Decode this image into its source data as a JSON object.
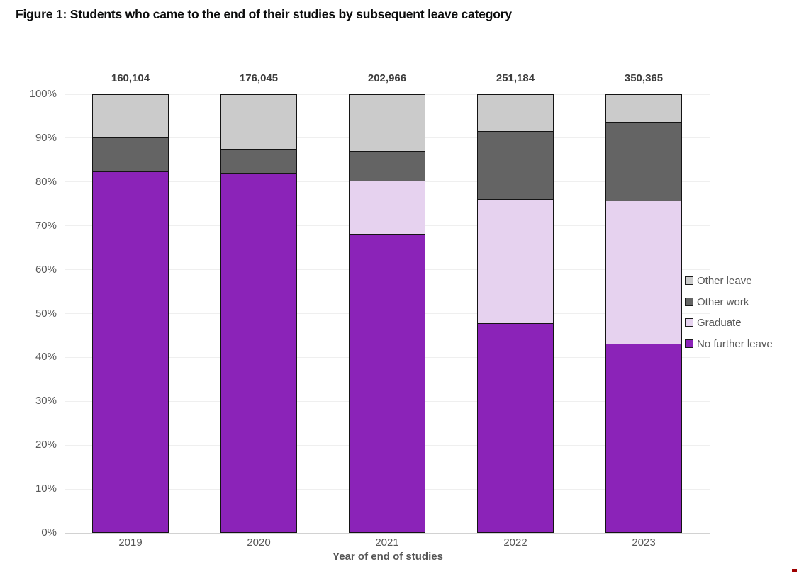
{
  "title": "Figure 1: Students who came to the end of their studies by subsequent leave category",
  "chart_data": {
    "type": "bar",
    "stacked": true,
    "title": "Figure 1: Students who came to the end of their studies by subsequent leave category",
    "categories": [
      "2019",
      "2020",
      "2021",
      "2022",
      "2023"
    ],
    "totals": [
      "160,104",
      "176,045",
      "202,966",
      "251,184",
      "350,365"
    ],
    "series": [
      {
        "name": "No further leave",
        "key": "no-further-leave",
        "color": "#8b23b8",
        "values": [
          82.4,
          82.2,
          68.2,
          47.9,
          43.2
        ]
      },
      {
        "name": "Graduate",
        "key": "graduate",
        "color": "#e6d2ef",
        "values": [
          0,
          0,
          12.1,
          28.3,
          32.6
        ]
      },
      {
        "name": "Other work",
        "key": "other-work",
        "color": "#646464",
        "values": [
          7.9,
          5.4,
          6.9,
          15.5,
          17.9
        ]
      },
      {
        "name": "Other leave",
        "key": "other-leave",
        "color": "#cbcbcb",
        "values": [
          9.7,
          12.4,
          12.8,
          8.3,
          6.3
        ]
      }
    ],
    "xlabel": "Year of end of studies",
    "ylabel": "",
    "ylim": [
      0,
      100
    ],
    "yticks": [
      "0%",
      "10%",
      "20%",
      "30%",
      "40%",
      "50%",
      "60%",
      "70%",
      "80%",
      "90%",
      "100%"
    ],
    "grid": true,
    "legend": {
      "position": "right",
      "items": [
        "Other leave",
        "Other work",
        "Graduate",
        "No further leave"
      ]
    },
    "colors": {
      "segment_border": "#141414",
      "gridline": "#efefef",
      "axis_line": "#d2d2d2",
      "tick_text": "#595959",
      "total_text": "#3d3d3d",
      "title_text": "#0b0c0c"
    }
  }
}
